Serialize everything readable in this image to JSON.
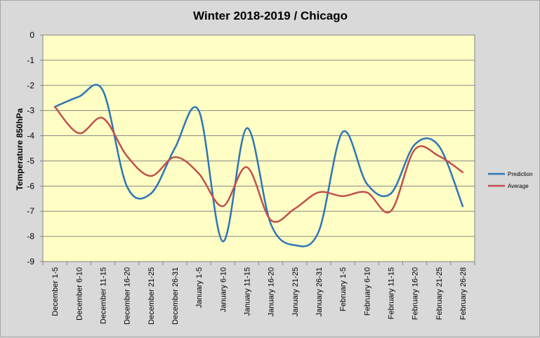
{
  "chart_data": {
    "type": "line",
    "title": "Winter 2018-2019 / Chicago",
    "ylabel": "Temperature 850hPa",
    "xlabel": "",
    "ylim": [
      -9,
      0
    ],
    "yticks": [
      "0",
      "-1",
      "-2",
      "-3",
      "-4",
      "-5",
      "-6",
      "-7",
      "-8",
      "-9"
    ],
    "grid": true,
    "legend_position": "right",
    "categories": [
      "December 1-5",
      "December 6-10",
      "December 11-15",
      "December 16-20",
      "December 21-25",
      "December 26-31",
      "January 1-5",
      "January 6-10",
      "January 11-15",
      "January 16-20",
      "January 21-25",
      "January 26-31",
      "February 1-5",
      "February 6-10",
      "February 11-15",
      "February 16-20",
      "February 21-25",
      "February 26-28"
    ],
    "series": [
      {
        "name": "Prediction",
        "color": "#2e75b6",
        "values": [
          -2.85,
          -2.45,
          -2.2,
          -6.0,
          -6.3,
          -4.5,
          -3.0,
          -8.2,
          -3.7,
          -7.5,
          -8.35,
          -7.8,
          -3.85,
          -5.9,
          -6.3,
          -4.35,
          -4.4,
          -6.8
        ]
      },
      {
        "name": "Average",
        "color": "#c0504d",
        "values": [
          -2.85,
          -3.9,
          -3.3,
          -4.8,
          -5.6,
          -4.85,
          -5.5,
          -6.8,
          -5.25,
          -7.35,
          -6.9,
          -6.25,
          -6.4,
          -6.25,
          -7.0,
          -4.55,
          -4.8,
          -5.45
        ]
      }
    ]
  }
}
